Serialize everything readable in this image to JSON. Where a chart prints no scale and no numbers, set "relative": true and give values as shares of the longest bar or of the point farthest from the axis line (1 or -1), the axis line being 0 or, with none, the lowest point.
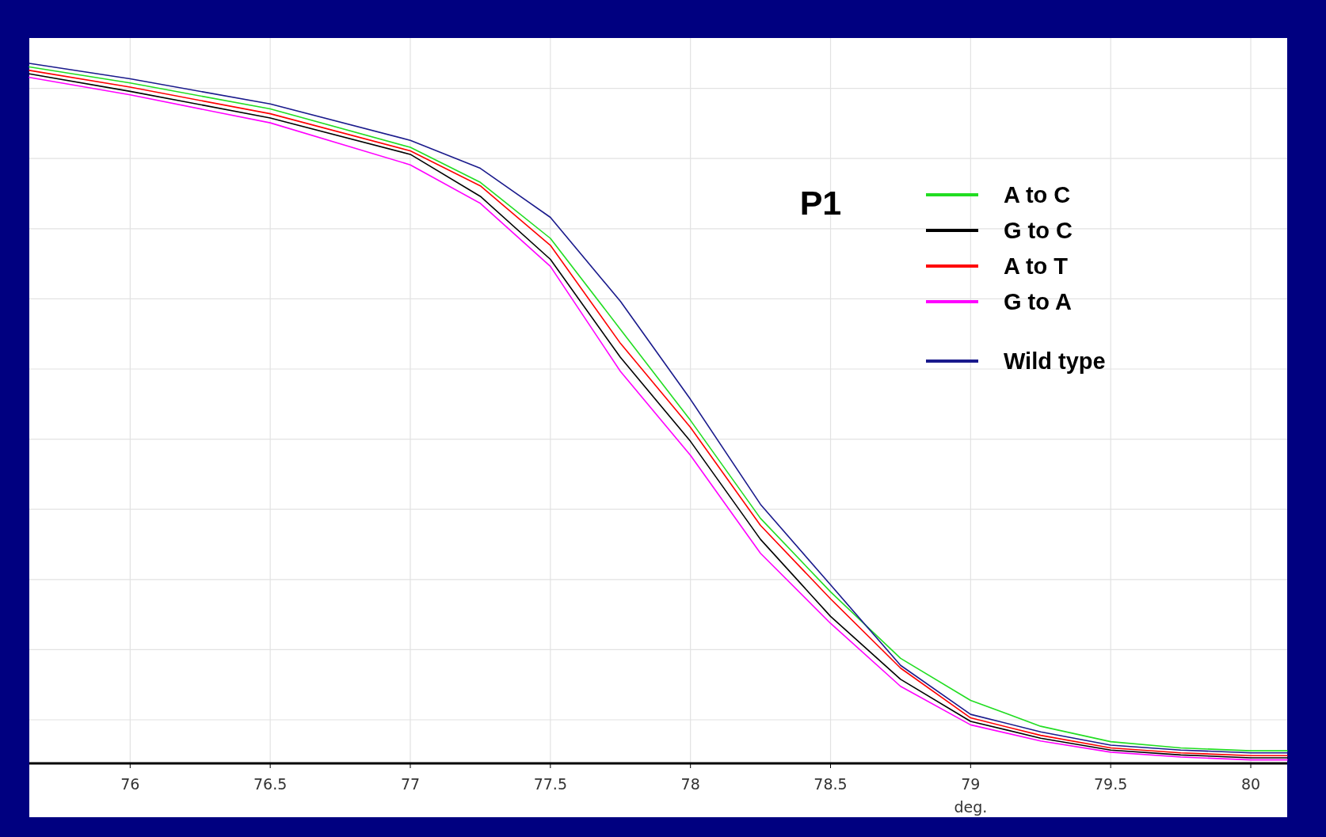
{
  "chart_data": {
    "type": "line",
    "title": "P1",
    "xlabel": "deg.",
    "relative": true,
    "x": [
      75.64,
      76,
      76.5,
      77,
      77.25,
      77.5,
      77.75,
      78,
      78.25,
      78.5,
      78.75,
      79,
      79.25,
      79.5,
      79.75,
      80,
      80.13
    ],
    "xlim": [
      75.64,
      80.13
    ],
    "xticks": [
      76,
      76.5,
      77,
      77.5,
      78,
      78.5,
      79,
      79.5,
      80
    ],
    "grid": true,
    "legend": "top right",
    "marker": "none",
    "line_style": "solid",
    "series": [
      {
        "name": "A to C",
        "color": "#22dd22",
        "values": [
          0.995,
          0.972,
          0.935,
          0.88,
          0.83,
          0.75,
          0.62,
          0.49,
          0.35,
          0.245,
          0.15,
          0.09,
          0.053,
          0.031,
          0.022,
          0.018,
          0.018
        ]
      },
      {
        "name": "G to C",
        "color": "#000000",
        "values": [
          0.985,
          0.96,
          0.922,
          0.87,
          0.81,
          0.72,
          0.58,
          0.46,
          0.32,
          0.21,
          0.12,
          0.06,
          0.036,
          0.019,
          0.012,
          0.008,
          0.008
        ]
      },
      {
        "name": "A to T",
        "color": "#ff0000",
        "values": [
          0.99,
          0.966,
          0.928,
          0.875,
          0.825,
          0.74,
          0.6,
          0.48,
          0.34,
          0.235,
          0.136,
          0.065,
          0.04,
          0.022,
          0.015,
          0.011,
          0.011
        ]
      },
      {
        "name": "G to A",
        "color": "#ff00ff",
        "values": [
          0.98,
          0.955,
          0.915,
          0.855,
          0.8,
          0.71,
          0.56,
          0.44,
          0.3,
          0.2,
          0.11,
          0.055,
          0.032,
          0.016,
          0.009,
          0.005,
          0.005
        ]
      },
      {
        "name": "Wild type",
        "color": "#1a1a8c",
        "values": [
          1,
          0.978,
          0.942,
          0.89,
          0.85,
          0.78,
          0.66,
          0.52,
          0.37,
          0.255,
          0.14,
          0.07,
          0.045,
          0.026,
          0.019,
          0.015,
          0.015
        ]
      }
    ]
  }
}
